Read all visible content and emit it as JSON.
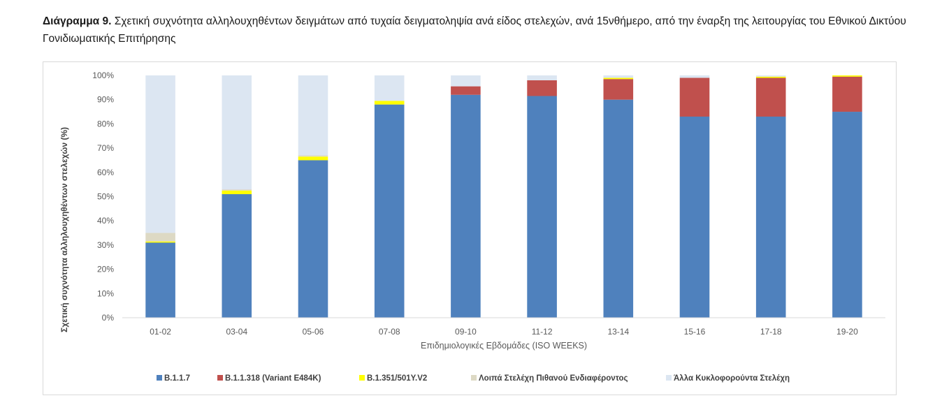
{
  "caption": {
    "label": "Διάγραμμα 9.",
    "text": "Σχετική συχνότητα αλληλουχηθέντων δειγμάτων από τυχαία δειγματοληψία ανά είδος στελεχών, ανά 15νθήμερο, από την έναρξη της λειτουργίας του Εθνικού Δικτύου Γονιδιωματικής Επιτήρησης"
  },
  "chart_data": {
    "type": "bar",
    "stacked": true,
    "xlabel": "Επιδημιολογικές Εβδομάδες (ISO WEEKS)",
    "ylabel": "Σχετική συχνότητα αλληλουχηθέντων στελεχών (%)",
    "ylim": [
      0,
      100
    ],
    "yticks": [
      "0%",
      "10%",
      "20%",
      "30%",
      "40%",
      "50%",
      "60%",
      "70%",
      "80%",
      "90%",
      "100%"
    ],
    "categories": [
      "01-02",
      "03-04",
      "05-06",
      "07-08",
      "09-10",
      "11-12",
      "13-14",
      "15-16",
      "17-18",
      "19-20"
    ],
    "legend_position": "bottom",
    "grid": false,
    "series": [
      {
        "name": "B.1.1.7",
        "color": "#4f81bd",
        "values": [
          31,
          51,
          65,
          88,
          92,
          91.5,
          90,
          83,
          83,
          85
        ]
      },
      {
        "name": "B.1.1.318 (Variant E484K)",
        "color": "#c0504d",
        "values": [
          0,
          0,
          0,
          0,
          3.5,
          6.5,
          8.5,
          16,
          16,
          14.5
        ]
      },
      {
        "name": "B.1.351/501Y.V2",
        "color": "#ffff00",
        "values": [
          0.5,
          1.5,
          1.5,
          1.5,
          0,
          0,
          0.5,
          0,
          0.5,
          0.5
        ]
      },
      {
        "name": "Λοιπά Στελέχη Πιθανού Ενδιαφέροντος",
        "color": "#ddd9c4",
        "values": [
          3.5,
          0.5,
          0.5,
          0,
          0,
          0,
          0,
          0,
          0,
          0
        ]
      },
      {
        "name": "Άλλα Κυκλοφορούντα Στελέχη",
        "color": "#dce6f2",
        "values": [
          65,
          47,
          33,
          10.5,
          4.5,
          2,
          1,
          1,
          0.5,
          0
        ]
      }
    ]
  }
}
